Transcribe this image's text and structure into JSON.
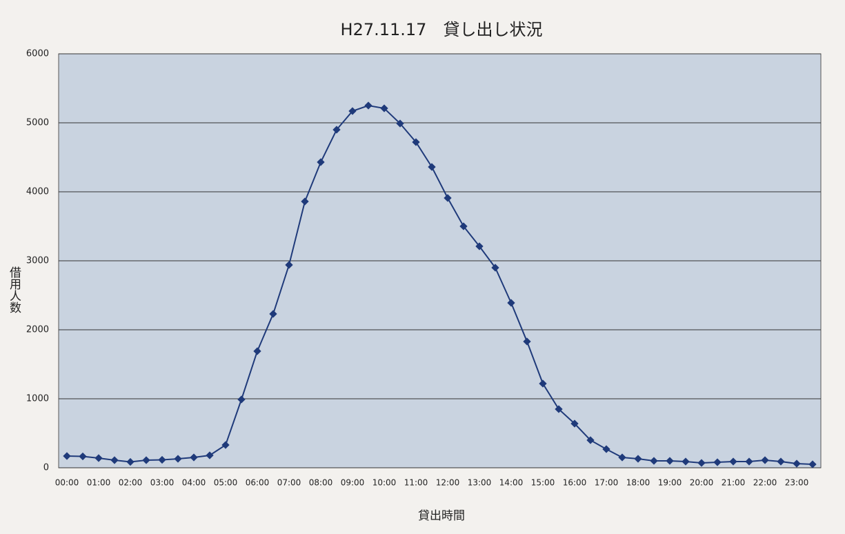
{
  "chart_data": {
    "type": "line",
    "title": "H27.11.17　貸し出し状況",
    "x_label": "貸出時間",
    "y_label": "借用人数",
    "categories": [
      "00:00",
      null,
      "01:00",
      null,
      "02:00",
      null,
      "03:00",
      null,
      "04:00",
      null,
      "05:00",
      null,
      "06:00",
      null,
      "07:00",
      null,
      "08:00",
      null,
      "09:00",
      null,
      "10:00",
      null,
      "11:00",
      null,
      "12:00",
      null,
      "13:00",
      null,
      "14:00",
      null,
      "15:00",
      null,
      "16:00",
      null,
      "17:00",
      null,
      "18:00",
      null,
      "19:00",
      null,
      "20:00",
      null,
      "21:00",
      null,
      "22:00",
      null,
      "23:00",
      null
    ],
    "values": [
      170,
      165,
      140,
      110,
      85,
      110,
      115,
      130,
      150,
      180,
      330,
      990,
      1690,
      2230,
      2940,
      3860,
      4430,
      4900,
      5170,
      5250,
      5210,
      4990,
      4720,
      4360,
      3910,
      3500,
      3210,
      2900,
      2390,
      1830,
      1220,
      850,
      640,
      400,
      270,
      150,
      130,
      100,
      100,
      90,
      70,
      80,
      90,
      90,
      110,
      90,
      60,
      50
    ],
    "color": "#1f3a7a",
    "background": "#c9d3e0",
    "ylim": [
      0,
      6000
    ],
    "yticks": [
      0,
      1000,
      2000,
      3000,
      4000,
      5000,
      6000
    ],
    "grid": true
  }
}
